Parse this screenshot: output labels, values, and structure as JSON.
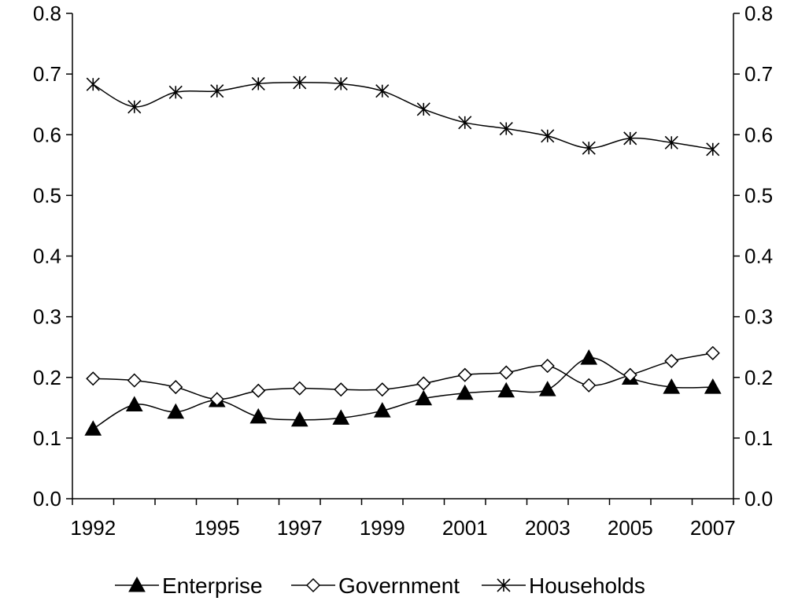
{
  "chart_data": {
    "type": "line",
    "x": [
      1992,
      1993,
      1994,
      1995,
      1996,
      1997,
      1998,
      1999,
      2000,
      2001,
      2002,
      2003,
      2004,
      2005,
      2006,
      2007
    ],
    "x_tick_labels": [
      "1992",
      "1995",
      "1997",
      "1999",
      "2001",
      "2003",
      "2005",
      "2007"
    ],
    "y_tick_labels": [
      "0.0",
      "0.1",
      "0.2",
      "0.3",
      "0.4",
      "0.5",
      "0.6",
      "0.7",
      "0.8"
    ],
    "ylim": [
      0,
      0.8
    ],
    "xlim": [
      1991.5,
      2007.5
    ],
    "secondary_y_axis": true,
    "grid": false,
    "legend_position": "bottom",
    "series": [
      {
        "name": "Enterprise",
        "marker": "filled-triangle",
        "values": [
          0.115,
          0.155,
          0.143,
          0.162,
          0.135,
          0.13,
          0.133,
          0.145,
          0.165,
          0.174,
          0.178,
          0.18,
          0.232,
          0.199,
          0.184,
          0.184
        ]
      },
      {
        "name": "Government",
        "marker": "open-diamond",
        "values": [
          0.198,
          0.195,
          0.184,
          0.164,
          0.178,
          0.182,
          0.18,
          0.18,
          0.19,
          0.204,
          0.208,
          0.219,
          0.187,
          0.204,
          0.227,
          0.24
        ]
      },
      {
        "name": "Households",
        "marker": "asterisk",
        "values": [
          0.683,
          0.646,
          0.67,
          0.672,
          0.684,
          0.686,
          0.684,
          0.672,
          0.642,
          0.62,
          0.61,
          0.598,
          0.578,
          0.594,
          0.587,
          0.576
        ]
      }
    ],
    "colors": {
      "line": "#000000",
      "background": "#ffffff"
    }
  }
}
